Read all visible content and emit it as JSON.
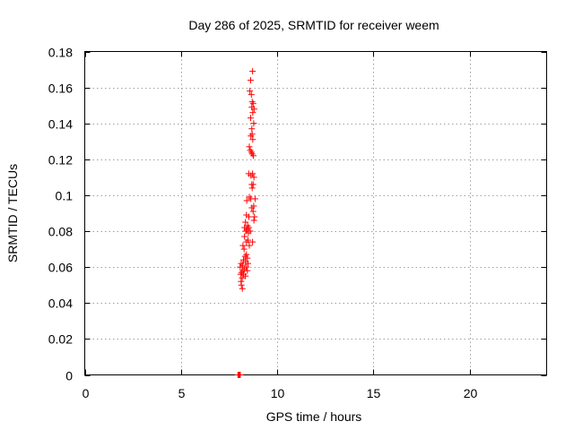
{
  "chart_data": {
    "type": "scatter",
    "title": "Day 286 of 2025, SRMTID for receiver weem",
    "xlabel": "GPS time / hours",
    "ylabel": "SRMTID / TECUs",
    "xlim": [
      0,
      24
    ],
    "ylim": [
      0,
      0.18
    ],
    "x_ticks": [
      0,
      5,
      10,
      15,
      20
    ],
    "x_tick_labels": [
      "0",
      "5",
      "10",
      "15",
      "20"
    ],
    "y_ticks": [
      0,
      0.02,
      0.04,
      0.06,
      0.08,
      0.1,
      0.12,
      0.14,
      0.16,
      0.18
    ],
    "y_tick_labels": [
      "0",
      "0.02",
      "0.04",
      "0.06",
      "0.08",
      "0.1",
      "0.12",
      "0.14",
      "0.16",
      "0.18"
    ],
    "grid": true,
    "series": [
      {
        "name": "SRMTID",
        "color": "#ff0000",
        "marker": "plus",
        "points": [
          [
            8.72,
            0.169
          ],
          [
            8.62,
            0.164
          ],
          [
            8.58,
            0.158
          ],
          [
            8.66,
            0.156
          ],
          [
            8.7,
            0.152
          ],
          [
            8.75,
            0.151
          ],
          [
            8.68,
            0.149
          ],
          [
            8.8,
            0.148
          ],
          [
            8.73,
            0.146
          ],
          [
            8.62,
            0.143
          ],
          [
            8.78,
            0.14
          ],
          [
            8.68,
            0.137
          ],
          [
            8.7,
            0.134
          ],
          [
            8.63,
            0.133
          ],
          [
            8.73,
            0.131
          ],
          [
            8.55,
            0.127
          ],
          [
            8.6,
            0.125
          ],
          [
            8.7,
            0.123
          ],
          [
            8.76,
            0.122
          ],
          [
            8.66,
            0.124
          ],
          [
            8.52,
            0.112
          ],
          [
            8.63,
            0.111
          ],
          [
            8.72,
            0.112
          ],
          [
            8.79,
            0.11
          ],
          [
            8.68,
            0.106
          ],
          [
            8.75,
            0.106
          ],
          [
            8.7,
            0.104
          ],
          [
            8.55,
            0.099
          ],
          [
            8.42,
            0.097
          ],
          [
            8.63,
            0.098
          ],
          [
            8.85,
            0.098
          ],
          [
            8.78,
            0.094
          ],
          [
            8.68,
            0.093
          ],
          [
            8.75,
            0.091
          ],
          [
            8.4,
            0.089
          ],
          [
            8.82,
            0.088
          ],
          [
            8.53,
            0.088
          ],
          [
            8.79,
            0.086
          ],
          [
            8.35,
            0.085
          ],
          [
            8.46,
            0.083
          ],
          [
            8.3,
            0.082
          ],
          [
            8.52,
            0.082
          ],
          [
            8.42,
            0.081
          ],
          [
            8.37,
            0.08
          ],
          [
            8.5,
            0.079
          ],
          [
            8.6,
            0.08
          ],
          [
            8.3,
            0.077
          ],
          [
            8.48,
            0.075
          ],
          [
            8.4,
            0.074
          ],
          [
            8.72,
            0.074
          ],
          [
            8.55,
            0.072
          ],
          [
            8.22,
            0.072
          ],
          [
            8.28,
            0.07
          ],
          [
            8.4,
            0.067
          ],
          [
            8.33,
            0.066
          ],
          [
            8.45,
            0.065
          ],
          [
            8.25,
            0.064
          ],
          [
            8.36,
            0.063
          ],
          [
            8.48,
            0.062
          ],
          [
            8.13,
            0.062
          ],
          [
            8.2,
            0.061
          ],
          [
            8.4,
            0.06
          ],
          [
            8.08,
            0.06
          ],
          [
            8.3,
            0.059
          ],
          [
            8.22,
            0.058
          ],
          [
            8.45,
            0.058
          ],
          [
            8.15,
            0.057
          ],
          [
            8.1,
            0.056
          ],
          [
            8.25,
            0.056
          ],
          [
            8.35,
            0.055
          ],
          [
            8.18,
            0.054
          ],
          [
            8.12,
            0.052
          ],
          [
            8.14,
            0.05
          ],
          [
            8.19,
            0.048
          ],
          [
            7.96,
            0.0
          ],
          [
            8.0,
            0.0
          ],
          [
            8.04,
            0.0
          ],
          [
            8.08,
            0.0
          ]
        ]
      }
    ]
  }
}
